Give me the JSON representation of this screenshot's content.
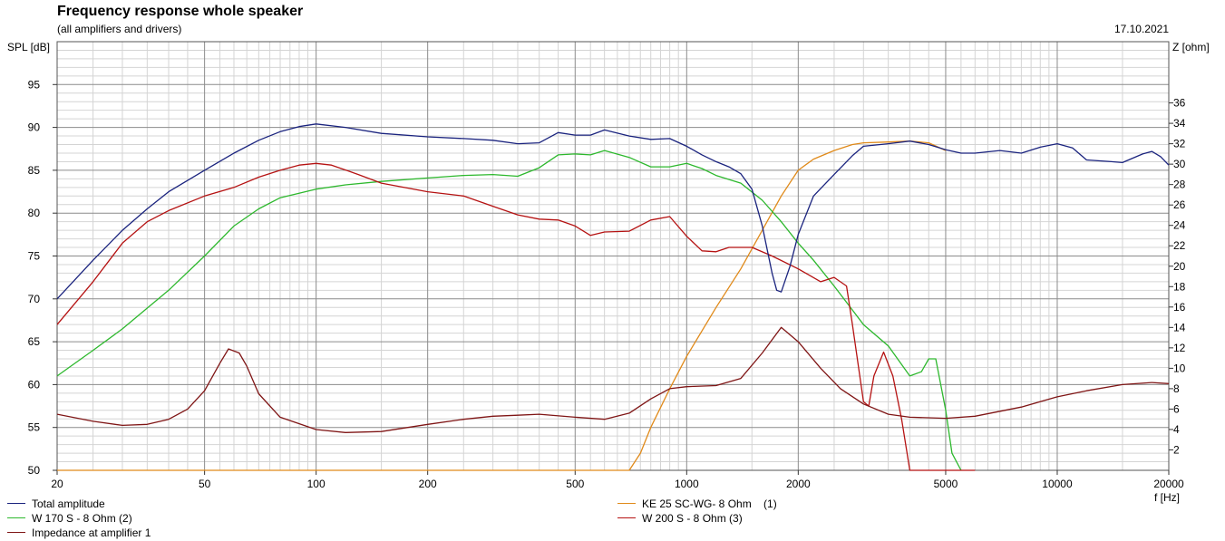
{
  "title": "Frequency response whole speaker",
  "subtitle": "(all amplifiers and drivers)",
  "date": "17.10.2021",
  "chart_data": {
    "type": "line",
    "ylabel": "SPL [dB]",
    "y2label": "Z [ohm]",
    "xlabel": "f [Hz]",
    "xscale": "log",
    "xlim": [
      20,
      20000
    ],
    "ylim": [
      50,
      100
    ],
    "y2lim": [
      0,
      42
    ],
    "xticks": [
      20,
      50,
      100,
      200,
      500,
      1000,
      2000,
      5000,
      10000,
      20000
    ],
    "xtick_labels": [
      "20",
      "50",
      "100",
      "200",
      "500",
      "1000",
      "2000",
      "5000",
      "10000",
      "20000"
    ],
    "yticks": [
      50,
      55,
      60,
      65,
      70,
      75,
      80,
      85,
      90,
      95
    ],
    "ytick_labels": [
      "50",
      "55",
      "60",
      "65",
      "70",
      "75",
      "80",
      "85",
      "90",
      "95"
    ],
    "y2ticks": [
      2,
      4,
      6,
      8,
      10,
      12,
      14,
      16,
      18,
      20,
      22,
      24,
      26,
      28,
      30,
      32,
      34,
      36
    ],
    "y2tick_labels": [
      "2",
      "4",
      "6",
      "8",
      "10",
      "12",
      "14",
      "16",
      "18",
      "20",
      "22",
      "24",
      "26",
      "28",
      "30",
      "32",
      "34",
      "36"
    ],
    "grid": true,
    "legend": "bottom",
    "series": [
      {
        "name": "Total amplitude",
        "color": "#1a237e",
        "axis": "left",
        "points": [
          [
            20,
            70
          ],
          [
            25,
            74.5
          ],
          [
            30,
            78
          ],
          [
            35,
            80.5
          ],
          [
            40,
            82.5
          ],
          [
            50,
            85
          ],
          [
            60,
            87
          ],
          [
            70,
            88.5
          ],
          [
            80,
            89.5
          ],
          [
            90,
            90.1
          ],
          [
            100,
            90.4
          ],
          [
            120,
            90
          ],
          [
            150,
            89.3
          ],
          [
            200,
            88.9
          ],
          [
            250,
            88.7
          ],
          [
            300,
            88.5
          ],
          [
            350,
            88.1
          ],
          [
            400,
            88.2
          ],
          [
            450,
            89.4
          ],
          [
            500,
            89.1
          ],
          [
            550,
            89.1
          ],
          [
            600,
            89.7
          ],
          [
            700,
            89
          ],
          [
            800,
            88.6
          ],
          [
            900,
            88.7
          ],
          [
            1000,
            87.8
          ],
          [
            1100,
            86.8
          ],
          [
            1200,
            86
          ],
          [
            1300,
            85.4
          ],
          [
            1400,
            84.6
          ],
          [
            1500,
            82.8
          ],
          [
            1600,
            78.5
          ],
          [
            1700,
            73
          ],
          [
            1750,
            71
          ],
          [
            1800,
            70.8
          ],
          [
            1900,
            73.8
          ],
          [
            2000,
            77.5
          ],
          [
            2200,
            82
          ],
          [
            2500,
            84.5
          ],
          [
            2800,
            86.7
          ],
          [
            3000,
            87.8
          ],
          [
            3500,
            88.1
          ],
          [
            4000,
            88.4
          ],
          [
            4500,
            88
          ],
          [
            5000,
            87.4
          ],
          [
            5500,
            87
          ],
          [
            6000,
            87
          ],
          [
            7000,
            87.3
          ],
          [
            8000,
            87
          ],
          [
            9000,
            87.7
          ],
          [
            10000,
            88.1
          ],
          [
            11000,
            87.6
          ],
          [
            12000,
            86.2
          ],
          [
            14000,
            86
          ],
          [
            15000,
            85.9
          ],
          [
            17000,
            86.9
          ],
          [
            18000,
            87.2
          ],
          [
            19000,
            86.6
          ],
          [
            20000,
            85.6
          ]
        ]
      },
      {
        "name": "W 170 S - 8 Ohm (2)",
        "color": "#2db82d",
        "axis": "left",
        "points": [
          [
            20,
            61
          ],
          [
            25,
            64
          ],
          [
            30,
            66.5
          ],
          [
            40,
            71
          ],
          [
            50,
            75
          ],
          [
            60,
            78.5
          ],
          [
            70,
            80.5
          ],
          [
            80,
            81.8
          ],
          [
            100,
            82.8
          ],
          [
            120,
            83.3
          ],
          [
            150,
            83.7
          ],
          [
            200,
            84.1
          ],
          [
            250,
            84.4
          ],
          [
            300,
            84.5
          ],
          [
            350,
            84.3
          ],
          [
            400,
            85.3
          ],
          [
            450,
            86.8
          ],
          [
            500,
            86.9
          ],
          [
            550,
            86.8
          ],
          [
            600,
            87.3
          ],
          [
            700,
            86.5
          ],
          [
            800,
            85.4
          ],
          [
            900,
            85.4
          ],
          [
            1000,
            85.8
          ],
          [
            1100,
            85.2
          ],
          [
            1200,
            84.4
          ],
          [
            1400,
            83.5
          ],
          [
            1600,
            81.5
          ],
          [
            1800,
            79
          ],
          [
            2000,
            76.5
          ],
          [
            2200,
            74.5
          ],
          [
            2500,
            71.5
          ],
          [
            2800,
            68.7
          ],
          [
            3000,
            67
          ],
          [
            3500,
            64.5
          ],
          [
            4000,
            61
          ],
          [
            4300,
            61.5
          ],
          [
            4500,
            63
          ],
          [
            4700,
            63
          ],
          [
            5000,
            57
          ],
          [
            5200,
            52
          ],
          [
            5500,
            50
          ]
        ]
      },
      {
        "name": "Impedance at amplifier 1",
        "color": "#7f1515",
        "axis": "right",
        "points": [
          [
            20,
            5.5
          ],
          [
            25,
            4.8
          ],
          [
            30,
            4.4
          ],
          [
            35,
            4.5
          ],
          [
            40,
            5
          ],
          [
            45,
            6
          ],
          [
            50,
            7.8
          ],
          [
            55,
            10.5
          ],
          [
            58,
            11.9
          ],
          [
            62,
            11.5
          ],
          [
            65,
            10.2
          ],
          [
            70,
            7.5
          ],
          [
            80,
            5.2
          ],
          [
            100,
            4
          ],
          [
            120,
            3.7
          ],
          [
            150,
            3.8
          ],
          [
            200,
            4.5
          ],
          [
            250,
            5
          ],
          [
            300,
            5.3
          ],
          [
            350,
            5.4
          ],
          [
            400,
            5.5
          ],
          [
            500,
            5.2
          ],
          [
            600,
            5
          ],
          [
            700,
            5.6
          ],
          [
            800,
            7
          ],
          [
            900,
            8
          ],
          [
            1000,
            8.2
          ],
          [
            1200,
            8.3
          ],
          [
            1400,
            9
          ],
          [
            1600,
            11.5
          ],
          [
            1800,
            14
          ],
          [
            2000,
            12.6
          ],
          [
            2300,
            10
          ],
          [
            2600,
            8
          ],
          [
            3000,
            6.5
          ],
          [
            3500,
            5.5
          ],
          [
            4000,
            5.2
          ],
          [
            5000,
            5.1
          ],
          [
            6000,
            5.3
          ],
          [
            8000,
            6.2
          ],
          [
            10000,
            7.2
          ],
          [
            12000,
            7.8
          ],
          [
            15000,
            8.4
          ],
          [
            18000,
            8.6
          ],
          [
            20000,
            8.5
          ]
        ]
      },
      {
        "name": "KE 25 SC-WG- 8 Ohm    (1)",
        "color": "#e08a1a",
        "axis": "left",
        "points": [
          [
            20,
            50
          ],
          [
            400,
            50
          ],
          [
            700,
            50
          ],
          [
            750,
            52
          ],
          [
            800,
            55
          ],
          [
            900,
            59.5
          ],
          [
            1000,
            63.3
          ],
          [
            1200,
            69
          ],
          [
            1400,
            73.5
          ],
          [
            1600,
            78
          ],
          [
            1800,
            82
          ],
          [
            2000,
            85
          ],
          [
            2200,
            86.3
          ],
          [
            2500,
            87.3
          ],
          [
            2800,
            88
          ],
          [
            3000,
            88.2
          ],
          [
            3500,
            88.3
          ],
          [
            4000,
            88.4
          ],
          [
            4500,
            88.2
          ],
          [
            5000,
            87.3
          ]
        ]
      },
      {
        "name": "W 200 S - 8 Ohm (3)",
        "color": "#b51212",
        "axis": "left",
        "points": [
          [
            20,
            67
          ],
          [
            25,
            72
          ],
          [
            30,
            76.5
          ],
          [
            35,
            79
          ],
          [
            40,
            80.3
          ],
          [
            50,
            82
          ],
          [
            60,
            83
          ],
          [
            70,
            84.2
          ],
          [
            80,
            85
          ],
          [
            90,
            85.6
          ],
          [
            100,
            85.8
          ],
          [
            110,
            85.6
          ],
          [
            130,
            84.5
          ],
          [
            150,
            83.5
          ],
          [
            200,
            82.5
          ],
          [
            250,
            82
          ],
          [
            300,
            80.8
          ],
          [
            350,
            79.8
          ],
          [
            400,
            79.3
          ],
          [
            450,
            79.2
          ],
          [
            500,
            78.5
          ],
          [
            550,
            77.4
          ],
          [
            600,
            77.8
          ],
          [
            700,
            77.9
          ],
          [
            800,
            79.2
          ],
          [
            900,
            79.6
          ],
          [
            1000,
            77.3
          ],
          [
            1100,
            75.6
          ],
          [
            1200,
            75.5
          ],
          [
            1300,
            76
          ],
          [
            1500,
            76
          ],
          [
            1700,
            75
          ],
          [
            2000,
            73.5
          ],
          [
            2300,
            72
          ],
          [
            2500,
            72.5
          ],
          [
            2700,
            71.5
          ],
          [
            2800,
            67
          ],
          [
            3000,
            58
          ],
          [
            3100,
            57.5
          ],
          [
            3200,
            61
          ],
          [
            3400,
            63.8
          ],
          [
            3600,
            61
          ],
          [
            3800,
            56
          ],
          [
            4000,
            50
          ],
          [
            5000,
            50
          ],
          [
            6000,
            50
          ]
        ]
      }
    ]
  }
}
